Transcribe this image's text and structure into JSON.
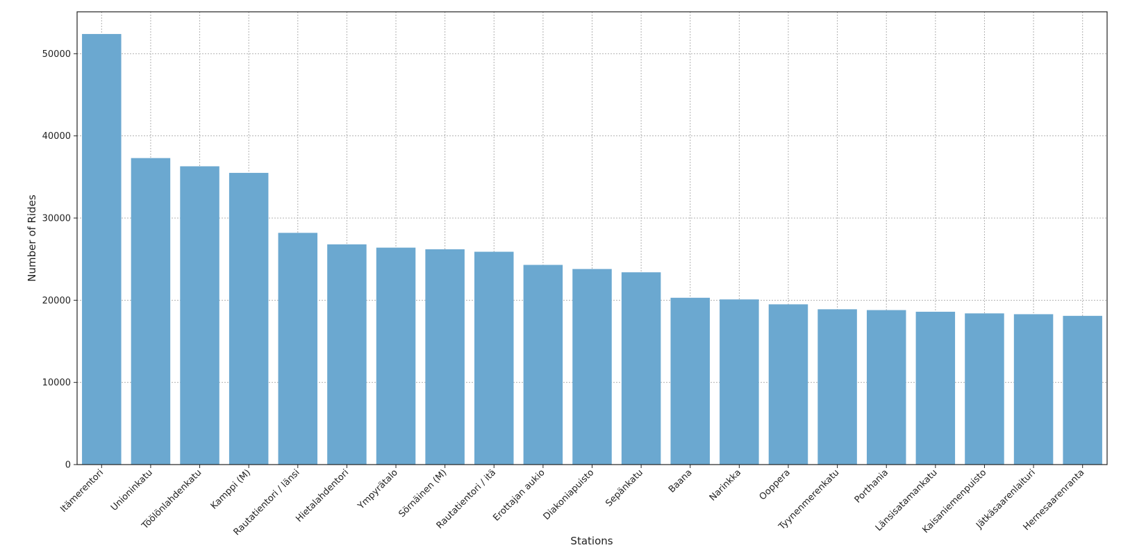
{
  "chart_data": {
    "type": "bar",
    "title": "",
    "xlabel": "Stations",
    "ylabel": "Number of Rides",
    "categories": [
      "Itämerentori",
      "Unioninkatu",
      "Töölönlahdenkatu",
      "Kamppi (M)",
      "Rautatientori / länsi",
      "Hietalahdentori",
      "Ympyrätalo",
      "Sörnäinen (M)",
      "Rautatientori / itä",
      "Erottajan aukio",
      "Diakoniapuisto",
      "Sepänkatu",
      "Baana",
      "Narinkka",
      "Ooppera",
      "Tyynenmerenkatu",
      "Porthania",
      "Länsisatamankatu",
      "Kaisaniemenpuisto",
      "Jätkäsaarenlaituri",
      "Hernesaarenranta"
    ],
    "values": [
      52400,
      37300,
      36300,
      35500,
      28200,
      26800,
      26400,
      26200,
      25900,
      24300,
      23800,
      23400,
      20300,
      20100,
      19500,
      18900,
      18800,
      18600,
      18400,
      18300,
      18100
    ],
    "yticks": [
      "0",
      "10000",
      "20000",
      "30000",
      "40000",
      "50000"
    ],
    "ylim": [
      0,
      55100
    ],
    "grid": true,
    "bar_color": "#6ba8d0"
  }
}
